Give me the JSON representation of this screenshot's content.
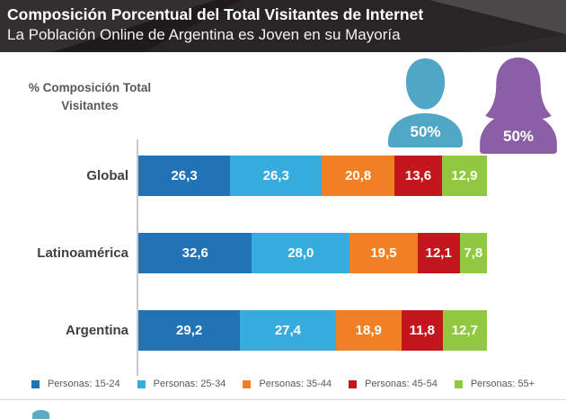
{
  "header": {
    "title": "Composición Porcentual del Total Visitantes de Internet",
    "subtitle": "La Población Online de Argentina es Joven en su Mayoría",
    "background_color": "#282526",
    "text_color": "#ffffff"
  },
  "axis_note": {
    "line1": "% Composición Total",
    "line2": "Visitantes"
  },
  "demographics": {
    "male": {
      "label": "50%",
      "color": "#4FA6C5"
    },
    "female": {
      "label": "50%",
      "color": "#8B5FA5"
    }
  },
  "chart_data": {
    "type": "bar",
    "variant": "horizontal-stacked",
    "title": "Composición Porcentual del Total Visitantes de Internet",
    "xlabel": "% Composición Total Visitantes",
    "xlim": [
      0,
      100
    ],
    "value_unit": "percent",
    "grid": false,
    "legend_position": "bottom",
    "categories": [
      "Global",
      "Latinoamérica",
      "Argentina"
    ],
    "series": [
      {
        "name": "Personas: 15-24",
        "color": "#2173B6",
        "values": [
          26.3,
          32.6,
          29.2
        ],
        "labels": [
          "26,3",
          "32,6",
          "29,2"
        ]
      },
      {
        "name": "Personas: 25-34",
        "color": "#36ABDD",
        "values": [
          26.3,
          28.0,
          27.4
        ],
        "labels": [
          "26,3",
          "28,0",
          "27,4"
        ]
      },
      {
        "name": "Personas: 35-44",
        "color": "#F08023",
        "values": [
          20.8,
          19.5,
          18.9
        ],
        "labels": [
          "20,8",
          "19,5",
          "18,9"
        ]
      },
      {
        "name": "Personas: 45-54",
        "color": "#C2181D",
        "values": [
          13.6,
          12.1,
          11.8
        ],
        "labels": [
          "13,6",
          "12,1",
          "11,8"
        ]
      },
      {
        "name": "Personas: 55+",
        "color": "#90C840",
        "values": [
          12.9,
          7.8,
          12.7
        ],
        "labels": [
          "12,9",
          "7,8",
          "12,7"
        ]
      }
    ]
  }
}
